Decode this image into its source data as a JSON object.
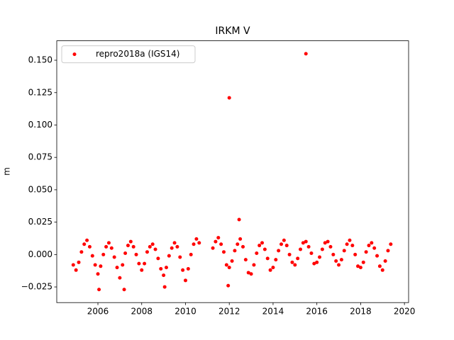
{
  "chart_data": {
    "type": "scatter",
    "title": "IRKM V",
    "y_label": "m",
    "xlim": [
      2004.12,
      2020.19
    ],
    "ylim": [
      -0.0371,
      0.165
    ],
    "xticks": [
      2006,
      2008,
      2010,
      2012,
      2014,
      2016,
      2018,
      2020
    ],
    "yticks": [
      {
        "value": -0.025,
        "label": "−0.025"
      },
      {
        "value": 0,
        "label": "0.000"
      },
      {
        "value": 0.025,
        "label": "0.025"
      },
      {
        "value": 0.05,
        "label": "0.050"
      },
      {
        "value": 0.075,
        "label": "0.075"
      },
      {
        "value": 0.1,
        "label": "0.100"
      },
      {
        "value": 0.125,
        "label": "0.125"
      },
      {
        "value": 0.15,
        "label": "0.150"
      }
    ],
    "legend": "upper left",
    "series": [
      {
        "name": "repro2018a (IGS14)",
        "color": "#ff0000",
        "x": [
          2004.875,
          2005.0,
          2005.125,
          2005.25,
          2005.375,
          2005.5,
          2005.625,
          2005.75,
          2005.875,
          2006.0,
          2006.125,
          2006.25,
          2006.375,
          2006.5,
          2006.625,
          2006.75,
          2006.875,
          2007.0,
          2007.125,
          2007.25,
          2007.375,
          2007.5,
          2007.625,
          2007.75,
          2007.875,
          2008.0,
          2008.125,
          2008.25,
          2008.375,
          2008.5,
          2008.625,
          2008.75,
          2008.875,
          2009.0,
          2009.125,
          2009.25,
          2009.375,
          2009.5,
          2009.625,
          2009.75,
          2009.875,
          2010.0,
          2010.125,
          2010.25,
          2010.375,
          2010.5,
          2010.625,
          2011.25,
          2011.375,
          2011.5,
          2011.625,
          2011.75,
          2011.875,
          2012.0,
          2012.125,
          2012.25,
          2012.375,
          2012.5,
          2012.625,
          2012.75,
          2012.875,
          2013.0,
          2013.125,
          2013.25,
          2013.375,
          2013.5,
          2013.625,
          2013.75,
          2013.875,
          2014.0,
          2014.125,
          2014.25,
          2014.375,
          2014.5,
          2014.625,
          2014.75,
          2014.875,
          2015.0,
          2015.125,
          2015.25,
          2015.375,
          2015.5,
          2015.625,
          2015.75,
          2015.875,
          2016.0,
          2016.125,
          2016.25,
          2016.375,
          2016.5,
          2016.625,
          2016.75,
          2016.875,
          2017.0,
          2017.125,
          2017.25,
          2017.375,
          2017.5,
          2017.625,
          2017.75,
          2017.875,
          2018.0,
          2018.125,
          2018.25,
          2018.375,
          2018.5,
          2018.625,
          2018.75,
          2018.875,
          2019.0,
          2019.125,
          2019.25,
          2019.375,
          2012.0,
          2015.5,
          2012.45,
          2011.95,
          2006.05,
          2007.2,
          2009.05
        ],
        "values": [
          -0.008,
          -0.012,
          -0.006,
          0.002,
          0.008,
          0.011,
          0.006,
          -0.001,
          -0.008,
          -0.015,
          -0.009,
          0.0,
          0.006,
          0.009,
          0.005,
          -0.002,
          -0.01,
          -0.018,
          -0.008,
          0.001,
          0.007,
          0.01,
          0.006,
          0.0,
          -0.007,
          -0.012,
          -0.007,
          0.002,
          0.006,
          0.008,
          0.004,
          -0.003,
          -0.011,
          -0.016,
          -0.01,
          -0.001,
          0.005,
          0.009,
          0.006,
          -0.002,
          -0.012,
          -0.02,
          -0.011,
          0.0,
          0.008,
          0.012,
          0.009,
          0.005,
          0.01,
          0.013,
          0.008,
          0.002,
          -0.008,
          -0.01,
          -0.005,
          0.003,
          0.008,
          0.012,
          0.006,
          -0.004,
          -0.014,
          -0.015,
          -0.008,
          0.001,
          0.007,
          0.009,
          0.004,
          -0.003,
          -0.012,
          -0.01,
          -0.004,
          0.003,
          0.008,
          0.011,
          0.007,
          0.0,
          -0.006,
          -0.008,
          -0.003,
          0.004,
          0.009,
          0.01,
          0.006,
          0.001,
          -0.007,
          -0.006,
          -0.002,
          0.004,
          0.009,
          0.01,
          0.006,
          0.0,
          -0.005,
          -0.008,
          -0.004,
          0.003,
          0.008,
          0.011,
          0.007,
          0.0,
          -0.009,
          -0.01,
          -0.006,
          0.002,
          0.007,
          0.009,
          0.005,
          -0.001,
          -0.009,
          -0.012,
          -0.005,
          0.003,
          0.008,
          0.121,
          0.155,
          0.027,
          -0.024,
          -0.027,
          -0.027,
          -0.025
        ]
      }
    ]
  }
}
